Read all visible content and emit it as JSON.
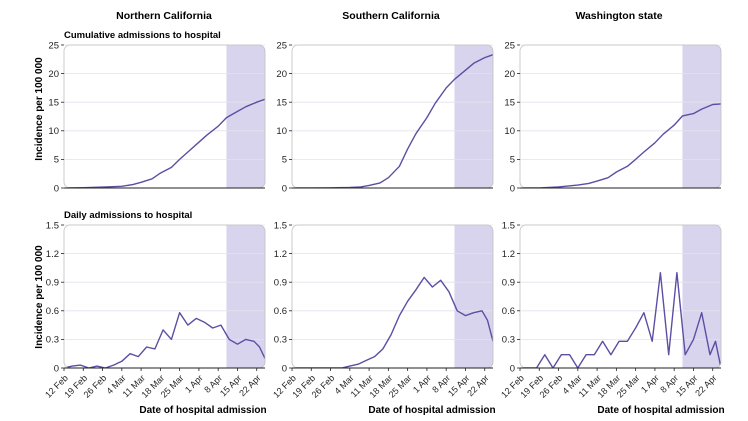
{
  "chart_data": {
    "type": "line",
    "column_titles": [
      "Northern California",
      "Southern California",
      "Washington state"
    ],
    "row_titles": [
      "Cumulative admissions to hospital",
      "Daily admissions to hospital"
    ],
    "ylabel": "Incidence per 100 000",
    "xlabel": "Date of hospital admission",
    "x_dates": [
      "12 Feb",
      "19 Feb",
      "26 Feb",
      "4 Mar",
      "11 Mar",
      "18 Mar",
      "25 Mar",
      "1 Apr",
      "8 Apr",
      "15 Apr",
      "22 Apr"
    ],
    "x_range": [
      "2020-02-12",
      "2020-04-25"
    ],
    "shaded_region": [
      "2020-04-11",
      "2020-04-25"
    ],
    "line_color": "#5b4fa3",
    "shade_color": "#d8d4ee",
    "rows": [
      {
        "title": "Cumulative admissions to hospital",
        "ylim": [
          0,
          25
        ],
        "yticks": [
          "0",
          "5",
          "10",
          "15",
          "20",
          "25"
        ],
        "panels": [
          {
            "name": "Northern California",
            "x": [
              "2020-02-12",
              "2020-02-19",
              "2020-02-26",
              "2020-03-04",
              "2020-03-08",
              "2020-03-11",
              "2020-03-15",
              "2020-03-18",
              "2020-03-22",
              "2020-03-25",
              "2020-03-28",
              "2020-04-01",
              "2020-04-04",
              "2020-04-08",
              "2020-04-11",
              "2020-04-15",
              "2020-04-18",
              "2020-04-22",
              "2020-04-25"
            ],
            "y": [
              0,
              0.05,
              0.15,
              0.3,
              0.6,
              1.0,
              1.6,
              2.6,
              3.6,
              5.0,
              6.3,
              8.0,
              9.3,
              10.8,
              12.3,
              13.4,
              14.2,
              15.0,
              15.5
            ]
          },
          {
            "name": "Southern California",
            "x": [
              "2020-02-12",
              "2020-02-19",
              "2020-02-26",
              "2020-03-04",
              "2020-03-08",
              "2020-03-11",
              "2020-03-15",
              "2020-03-18",
              "2020-03-22",
              "2020-03-25",
              "2020-03-28",
              "2020-04-01",
              "2020-04-04",
              "2020-04-08",
              "2020-04-11",
              "2020-04-15",
              "2020-04-18",
              "2020-04-22",
              "2020-04-25"
            ],
            "y": [
              0,
              0,
              0.03,
              0.1,
              0.2,
              0.45,
              0.9,
              1.8,
              3.8,
              6.8,
              9.5,
              12.3,
              14.8,
              17.5,
              19.0,
              20.6,
              21.8,
              22.8,
              23.3
            ]
          },
          {
            "name": "Washington state",
            "x": [
              "2020-02-12",
              "2020-02-19",
              "2020-02-26",
              "2020-03-04",
              "2020-03-08",
              "2020-03-11",
              "2020-03-15",
              "2020-03-18",
              "2020-03-22",
              "2020-03-25",
              "2020-03-28",
              "2020-04-01",
              "2020-04-04",
              "2020-04-08",
              "2020-04-11",
              "2020-04-15",
              "2020-04-18",
              "2020-04-22",
              "2020-04-25"
            ],
            "y": [
              0,
              0,
              0.2,
              0.5,
              0.8,
              1.2,
              1.8,
              2.8,
              3.8,
              5.0,
              6.3,
              7.9,
              9.4,
              11.0,
              12.6,
              13.0,
              13.8,
              14.6,
              14.7
            ]
          }
        ]
      },
      {
        "title": "Daily admissions to hospital",
        "ylim": [
          0,
          1.5
        ],
        "yticks": [
          "0",
          "0.3",
          "0.6",
          "0.9",
          "1.2",
          "1.5"
        ],
        "panels": [
          {
            "name": "Northern California",
            "x": [
              "2020-02-12",
              "2020-02-15",
              "2020-02-18",
              "2020-02-21",
              "2020-02-24",
              "2020-02-27",
              "2020-03-01",
              "2020-03-04",
              "2020-03-07",
              "2020-03-10",
              "2020-03-13",
              "2020-03-16",
              "2020-03-19",
              "2020-03-22",
              "2020-03-25",
              "2020-03-28",
              "2020-03-31",
              "2020-04-03",
              "2020-04-06",
              "2020-04-09",
              "2020-04-12",
              "2020-04-15",
              "2020-04-18",
              "2020-04-21",
              "2020-04-23",
              "2020-04-25"
            ],
            "y": [
              0,
              0.02,
              0.03,
              0,
              0.02,
              0,
              0.03,
              0.07,
              0.15,
              0.12,
              0.22,
              0.2,
              0.4,
              0.3,
              0.58,
              0.45,
              0.52,
              0.48,
              0.42,
              0.45,
              0.3,
              0.25,
              0.3,
              0.28,
              0.22,
              0.1
            ]
          },
          {
            "name": "Southern California",
            "x": [
              "2020-02-12",
              "2020-02-15",
              "2020-02-18",
              "2020-02-21",
              "2020-02-24",
              "2020-02-27",
              "2020-03-01",
              "2020-03-04",
              "2020-03-07",
              "2020-03-10",
              "2020-03-13",
              "2020-03-16",
              "2020-03-19",
              "2020-03-22",
              "2020-03-25",
              "2020-03-28",
              "2020-03-31",
              "2020-04-03",
              "2020-04-06",
              "2020-04-09",
              "2020-04-12",
              "2020-04-15",
              "2020-04-18",
              "2020-04-21",
              "2020-04-23",
              "2020-04-25"
            ],
            "y": [
              0,
              0,
              0,
              0,
              0,
              0,
              0,
              0.02,
              0.04,
              0.08,
              0.12,
              0.2,
              0.35,
              0.55,
              0.7,
              0.82,
              0.95,
              0.85,
              0.92,
              0.8,
              0.6,
              0.55,
              0.58,
              0.6,
              0.5,
              0.28
            ]
          },
          {
            "name": "Washington state",
            "x": [
              "2020-02-12",
              "2020-02-15",
              "2020-02-18",
              "2020-02-21",
              "2020-02-24",
              "2020-02-27",
              "2020-03-01",
              "2020-03-04",
              "2020-03-07",
              "2020-03-10",
              "2020-03-13",
              "2020-03-16",
              "2020-03-19",
              "2020-03-22",
              "2020-03-25",
              "2020-03-28",
              "2020-03-31",
              "2020-04-03",
              "2020-04-06",
              "2020-04-09",
              "2020-04-12",
              "2020-04-15",
              "2020-04-18",
              "2020-04-21",
              "2020-04-23",
              "2020-04-25"
            ],
            "y": [
              0,
              0,
              0,
              0.14,
              0,
              0.14,
              0.14,
              0,
              0.14,
              0.14,
              0.28,
              0.14,
              0.28,
              0.28,
              0.42,
              0.58,
              0.28,
              1.0,
              0.14,
              1.0,
              0.14,
              0.3,
              0.58,
              0.14,
              0.28,
              0.0
            ]
          }
        ]
      }
    ]
  }
}
